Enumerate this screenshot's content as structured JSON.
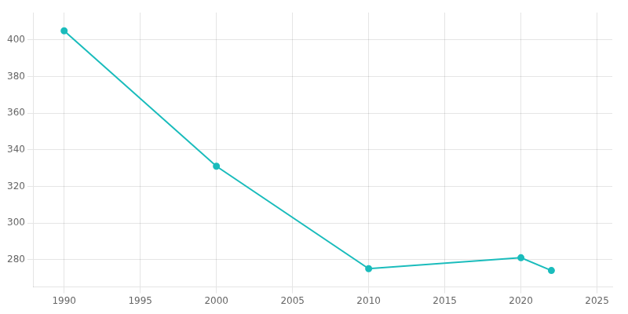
{
  "chart_data": {
    "type": "line",
    "x": [
      1990,
      2000,
      2010,
      2020,
      2022
    ],
    "values": [
      405,
      331,
      275,
      281,
      274
    ],
    "color": "#1abcbc",
    "marker": "circle",
    "xlim": [
      1988,
      2026
    ],
    "xticks": [
      1990,
      1995,
      2000,
      2005,
      2010,
      2015,
      2020,
      2025
    ],
    "ylim": [
      265,
      415
    ],
    "yticks": [
      280,
      300,
      320,
      340,
      360,
      380,
      400
    ],
    "grid": true
  }
}
